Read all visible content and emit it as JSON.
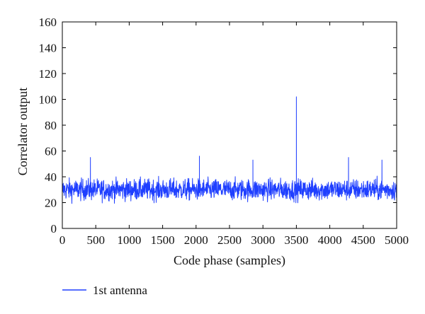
{
  "chart_data": {
    "type": "line",
    "title": "",
    "xlabel": "Code phase (samples)",
    "ylabel": "Correlator output",
    "xlim": [
      0,
      5000
    ],
    "ylim": [
      0,
      160
    ],
    "xticks": [
      0,
      500,
      1000,
      1500,
      2000,
      2500,
      3000,
      3500,
      4000,
      4500,
      5000
    ],
    "xtick_labels": [
      "0",
      "500",
      "1000",
      "1500",
      "2000",
      "2500",
      "3000",
      "3500",
      "4000",
      "4500",
      "5000"
    ],
    "yticks": [
      0,
      20,
      40,
      60,
      80,
      100,
      120,
      140,
      160
    ],
    "ytick_labels": [
      "0",
      "20",
      "40",
      "60",
      "80",
      "100",
      "120",
      "140",
      "160"
    ],
    "grid": false,
    "legend_position": "bottom-left, below plot",
    "series": [
      {
        "name": "1st antenna",
        "color": "#1f3fff",
        "noise_floor_range": [
          15,
          55
        ],
        "noise_mean": 30,
        "peaks": [
          {
            "x": 420,
            "y": 55
          },
          {
            "x": 2050,
            "y": 56
          },
          {
            "x": 2850,
            "y": 53
          },
          {
            "x": 3500,
            "y": 102
          },
          {
            "x": 4280,
            "y": 55
          },
          {
            "x": 4780,
            "y": 53
          }
        ]
      }
    ]
  }
}
